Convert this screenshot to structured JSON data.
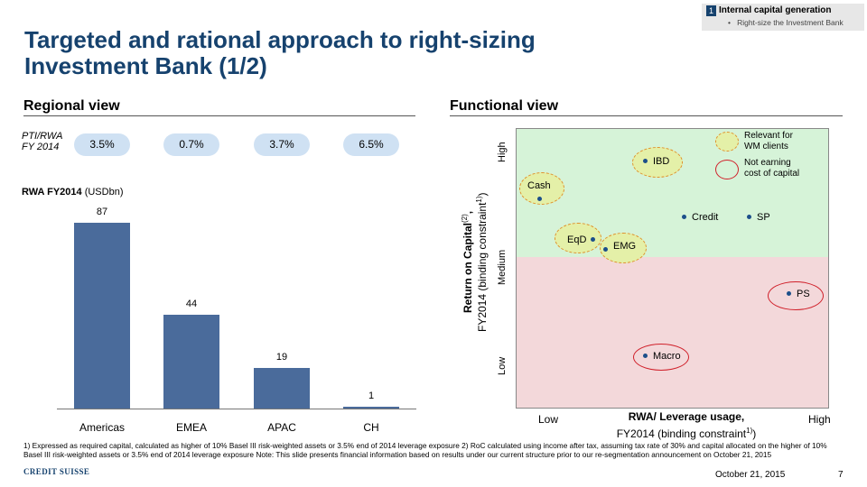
{
  "tag": {
    "number": "1",
    "title": "Internal capital generation",
    "bullet": "Right-size the Investment Bank"
  },
  "title": {
    "line1": "Targeted and rational approach to right-sizing",
    "line2": "Investment Bank (1/2)"
  },
  "regional": {
    "heading": "Regional view",
    "pti_label_line1": "PTI/RWA",
    "pti_label_line2": "FY 2014",
    "pti_values": [
      "3.5%",
      "0.7%",
      "3.7%",
      "6.5%"
    ],
    "rwa_title_bold": "RWA FY2014",
    "rwa_title_unit": "(USDbn)"
  },
  "chart_data": {
    "type": "bar",
    "title": "RWA FY2014 (USDbn)",
    "categories": [
      "Americas",
      "EMEA",
      "APAC",
      "CH"
    ],
    "values": [
      87,
      44,
      19,
      1
    ],
    "value_labels": [
      "87",
      "44",
      "19",
      "1"
    ],
    "ylim": [
      0,
      87
    ],
    "xlabel": "",
    "ylabel": ""
  },
  "functional": {
    "heading": "Functional view",
    "legend_relevant_line1": "Relevant for",
    "legend_relevant_line2": "WM clients",
    "legend_not_earning_line1": "Not earning",
    "legend_not_earning_line2": "cost of capital",
    "y_high": "High",
    "y_medium": "Medium",
    "y_low": "Low",
    "y_title_bold": "Return on Capital",
    "y_title_bold_sup": "(2)",
    "y_title_bold_suffix": ",",
    "y_title_normal": "FY2014 (binding constraint",
    "y_title_normal_sup": "1)",
    "y_title_normal_suffix": ")",
    "x_low": "Low",
    "x_high": "High",
    "x_title_bold": "RWA/ Leverage usage,",
    "x_title_normal": "FY2014 (binding constraint",
    "x_title_sup": "1)",
    "x_title_suffix": ")",
    "points": {
      "cash": "Cash",
      "ibd": "IBD",
      "eqd": "EqD",
      "emg": "EMG",
      "credit": "Credit",
      "sp": "SP",
      "ps": "PS",
      "macro": "Macro"
    }
  },
  "footnote": "1) Expressed as required capital, calculated as higher of 10% Basel III risk-weighted assets or 3.5% end of 2014 leverage exposure  2) RoC calculated using income after tax, assuming tax rate of 30% and capital allocated on the higher of 10% Basel III risk-weighted assets or 3.5% end of 2014 leverage exposure Note: This slide presents financial information based on results under our current structure prior to our re-segmentation announcement on October 21, 2015",
  "date": "October 21, 2015",
  "page_number": "7",
  "logo": "CREDIT SUISSE",
  "colors": {
    "title": "#16426e",
    "bar": "#4a6b9b",
    "pill": "#cfe1f3",
    "green_zone": "#d6f3d8",
    "red_zone": "#f3d8da"
  }
}
